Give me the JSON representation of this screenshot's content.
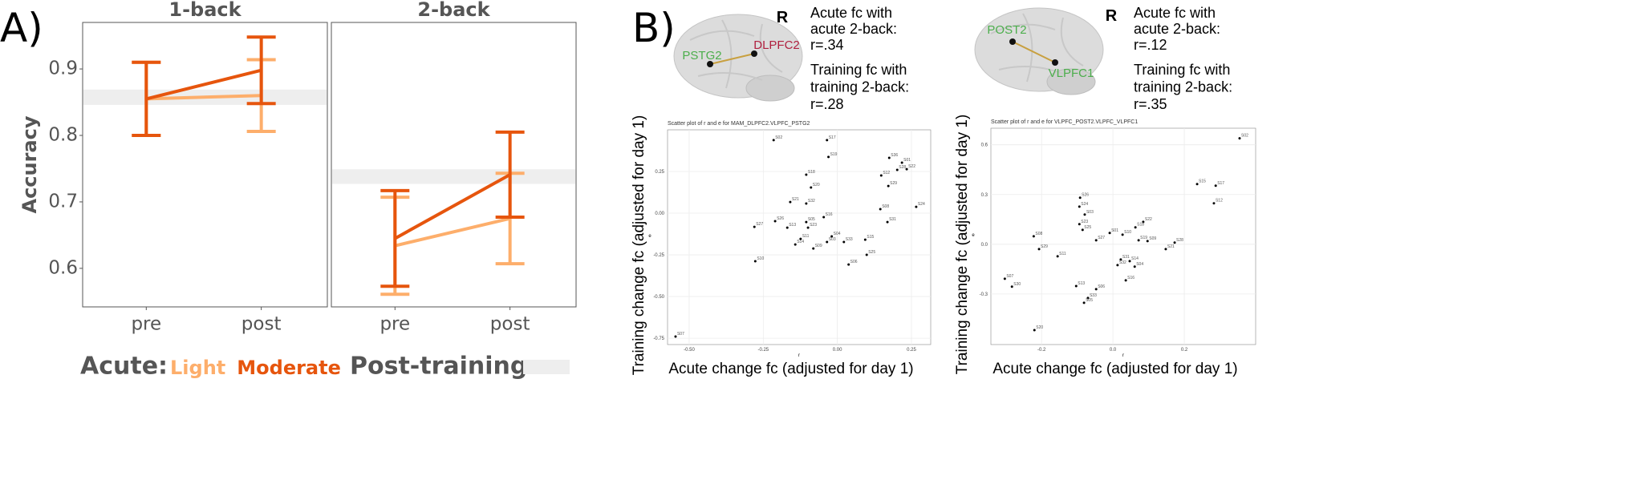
{
  "panel_labels": [
    "A)",
    "B)"
  ],
  "chart_data": [
    {
      "type": "line",
      "title": "1-back",
      "y_label": "Accuracy",
      "legend_title": "Acute:",
      "categories": [
        "pre",
        "post"
      ],
      "series": [
        {
          "name": "Light",
          "color": "#fdae6b",
          "values": [
            0.855,
            0.86
          ],
          "errors": [
            0.055,
            0.054
          ]
        },
        {
          "name": "Moderate",
          "color": "#e6550d",
          "values": [
            0.855,
            0.898
          ],
          "errors": [
            0.055,
            0.05
          ]
        }
      ],
      "band": {
        "name": "Post-training:",
        "color": "#eeeeee",
        "lower": 0.846,
        "upper": 0.869
      },
      "ylim": [
        0.542,
        0.97
      ],
      "yticks": [
        0.6,
        0.7,
        0.8,
        0.9
      ]
    },
    {
      "type": "line",
      "title": "2-back",
      "categories": [
        "pre",
        "post"
      ],
      "series": [
        {
          "color": "#fdae6b",
          "values": [
            0.634,
            0.675
          ],
          "errors": [
            0.073,
            0.068
          ]
        },
        {
          "color": "#e6550d",
          "values": [
            0.645,
            0.741
          ],
          "errors": [
            0.072,
            0.064
          ]
        }
      ],
      "band": {
        "color": "#eeeeee",
        "lower": 0.727,
        "upper": 0.749
      },
      "ylim": [
        0.542,
        0.97
      ]
    },
    {
      "type": "scatter",
      "title": "Scatter plot of r and e for MAM_DLPFC2.VLPFC_PSTG2",
      "x_label": "r",
      "y_label": "e",
      "x_title": "Acute change fc (adjusted for day 1)",
      "y_title": "Training change fc (adjusted for day 1)",
      "hemisphere": "R",
      "nodes": [
        {
          "label": "PSTG2",
          "color": "#4cae4c"
        },
        {
          "label": "DLPFC2",
          "color": "#b0203f"
        }
      ],
      "annotation": [
        "Acute fc with",
        "acute 2-back:",
        "r=.34",
        "Training fc with",
        "training 2-back:",
        "r=.28"
      ],
      "point_labels": [
        "S07",
        "S02",
        "S17",
        "S19",
        "S18",
        "S20",
        "S21",
        "S32",
        "S36",
        "S01",
        "S28",
        "S22",
        "S12",
        "S29",
        "S08",
        "S24",
        "S31",
        "S16",
        "S27",
        "S26",
        "S13",
        "S05",
        "S23",
        "S04",
        "S03",
        "S33",
        "S15",
        "S25",
        "S06",
        "S10",
        "S09",
        "S14",
        "S11"
      ],
      "x": [
        -0.546,
        -0.215,
        -0.035,
        -0.03,
        -0.105,
        -0.089,
        -0.159,
        -0.105,
        0.175,
        0.218,
        0.202,
        0.234,
        0.148,
        0.172,
        0.145,
        0.266,
        0.169,
        -0.046,
        -0.28,
        -0.21,
        -0.169,
        -0.105,
        -0.099,
        -0.019,
        -0.035,
        0.022,
        0.094,
        0.099,
        0.038,
        -0.277,
        -0.081,
        -0.142,
        -0.124
      ],
      "values": [
        -0.74,
        0.438,
        0.438,
        0.337,
        0.231,
        0.154,
        0.067,
        0.058,
        0.332,
        0.303,
        0.26,
        0.264,
        0.226,
        0.163,
        0.024,
        0.038,
        -0.053,
        -0.024,
        -0.082,
        -0.048,
        -0.087,
        -0.053,
        -0.087,
        -0.139,
        -0.173,
        -0.173,
        -0.159,
        -0.25,
        -0.308,
        -0.288,
        -0.212,
        -0.188,
        -0.154
      ],
      "color": "#000000",
      "xlim": [
        -0.573,
        0.315
      ],
      "ylim": [
        -0.788,
        0.5
      ],
      "xticks": [
        {
          "value": -0.5,
          "label": "-0.50"
        },
        {
          "value": -0.25,
          "label": "-0.25"
        },
        {
          "value": 0,
          "label": "0.00"
        },
        0.25
      ],
      "yticks": [
        {
          "value": -0.75,
          "label": "-0.75"
        },
        {
          "value": -0.5,
          "label": "-0.50"
        },
        {
          "value": -0.25,
          "label": "-0.25"
        },
        {
          "value": 0,
          "label": "0.00"
        },
        0.25
      ],
      "grid": true
    },
    {
      "type": "scatter",
      "title": "Scatter plot of r and e for VLPFC_POST2.VLPFC_VLPFC1",
      "x_label": "r",
      "y_label": "e",
      "x_title": "Acute change fc (adjusted for day 1)",
      "y_title": "Training change fc (adjusted for day 1)",
      "hemisphere": "R",
      "nodes": [
        {
          "label": "POST2",
          "color": "#4cae4c"
        },
        {
          "label": "VLPFC1",
          "color": "#4cae4c"
        }
      ],
      "annotation": [
        "Acute fc with",
        "acute 2-back:",
        "r=.12",
        "Training fc with",
        "training 2-back:",
        "r=.35"
      ],
      "point_labels": [
        "S02",
        "S15",
        "S17",
        "S12",
        "S26",
        "S24",
        "S03",
        "S23",
        "S25",
        "S22",
        "S18",
        "S01",
        "S10",
        "S19",
        "S09",
        "S27",
        "S08",
        "S29",
        "S11",
        "S21",
        "S28",
        "S31",
        "S32",
        "S14",
        "S04",
        "S16",
        "S13",
        "S06",
        "S33",
        "S05",
        "S07",
        "S30",
        "S20"
      ],
      "x": [
        0.355,
        0.236,
        0.288,
        0.283,
        -0.092,
        -0.094,
        -0.079,
        -0.094,
        -0.085,
        0.085,
        0.063,
        -0.009,
        0.027,
        0.072,
        0.097,
        -0.047,
        -0.222,
        -0.207,
        -0.155,
        0.148,
        0.173,
        0.022,
        0.013,
        0.047,
        0.061,
        0.036,
        -0.103,
        -0.047,
        -0.07,
        -0.081,
        -0.303,
        -0.283,
        -0.22
      ],
      "values": [
        0.639,
        0.363,
        0.353,
        0.247,
        0.281,
        0.227,
        0.179,
        0.121,
        0.087,
        0.135,
        0.102,
        0.068,
        0.058,
        0.024,
        0.019,
        0.024,
        0.048,
        -0.029,
        -0.073,
        -0.029,
        0.01,
        -0.092,
        -0.126,
        -0.102,
        -0.135,
        -0.218,
        -0.252,
        -0.271,
        -0.324,
        -0.353,
        -0.208,
        -0.256,
        -0.518
      ],
      "color": "#000000",
      "xlim": [
        -0.342,
        0.4
      ],
      "ylim": [
        -0.605,
        0.7
      ],
      "xticks": [
        -0.2,
        {
          "value": 0,
          "label": "0.0"
        },
        0.2
      ],
      "yticks": [
        -0.3,
        {
          "value": 0,
          "label": "0.0"
        },
        0.3,
        0.6
      ],
      "grid": true
    }
  ]
}
